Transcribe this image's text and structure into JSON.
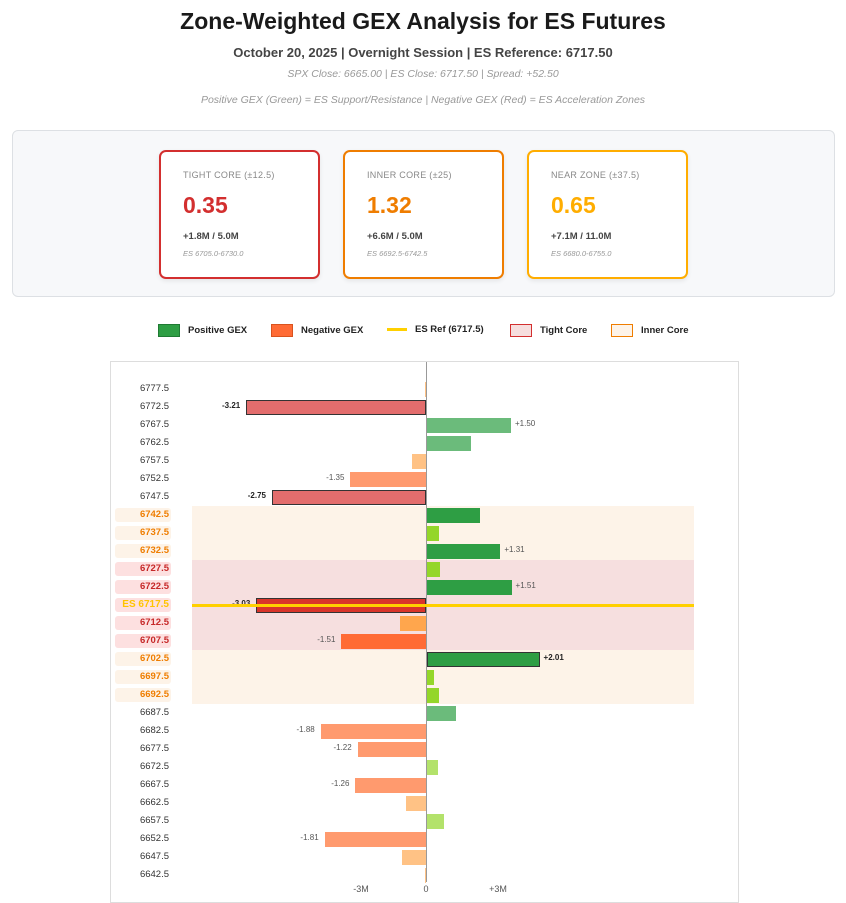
{
  "header": {
    "title": "Zone-Weighted GEX Analysis for ES Futures",
    "subtitle": "October 20, 2025 | Overnight Session | ES Reference: 6717.50",
    "closes": "SPX Close: 6665.00 | ES Close: 6717.50 | Spread: +52.50",
    "note": "Positive GEX (Green) = ES Support/Resistance | Negative GEX (Red) = ES Acceleration Zones"
  },
  "cards": [
    {
      "label": "TIGHT CORE (±12.5)",
      "value": "0.35",
      "ratio": "+1.8M / 5.0M",
      "range": "ES 6705.0-6730.0",
      "color": "#d32f2f"
    },
    {
      "label": "INNER CORE (±25)",
      "value": "1.32",
      "ratio": "+6.6M / 5.0M",
      "range": "ES 6692.5-6742.5",
      "color": "#ef7d00"
    },
    {
      "label": "NEAR ZONE (±37.5)",
      "value": "0.65",
      "ratio": "+7.1M / 11.0M",
      "range": "ES 6680.0-6755.0",
      "color": "#ffad00"
    }
  ],
  "legend": [
    {
      "label": "Positive GEX",
      "fill": "#2e9e44",
      "border": "#1f7a33",
      "line": false
    },
    {
      "label": "Negative GEX",
      "fill": "#ff6b35",
      "border": "#d9531e",
      "line": false
    },
    {
      "label": "ES Ref (6717.5)",
      "fill": "#ffd000",
      "border": "#ffd000",
      "line": true
    },
    {
      "label": "Tight Core",
      "fill": "#f6dede",
      "border": "#d32f2f",
      "line": false
    },
    {
      "label": "Inner Core",
      "fill": "#fdf3e8",
      "border": "#ef7d00",
      "line": false
    }
  ],
  "chart_data": {
    "type": "bar",
    "orientation": "horizontal",
    "es_ref": 6717.5,
    "es_ref_label": "ES 6717.5",
    "x_ticks": [
      "-3M",
      "0",
      "+3M"
    ],
    "rows": [
      {
        "strike": "6777.5",
        "value": -0.02,
        "color": "#ffc285",
        "label": "",
        "zone": ""
      },
      {
        "strike": "6772.5",
        "value": -3.21,
        "color": "#e36d6d",
        "label": "-3.21",
        "zone": "",
        "bold": true
      },
      {
        "strike": "6767.5",
        "value": 1.5,
        "color": "#6bbb7b",
        "label": "+1.50",
        "zone": ""
      },
      {
        "strike": "6762.5",
        "value": 0.78,
        "color": "#6bbb7b",
        "label": "",
        "zone": ""
      },
      {
        "strike": "6757.5",
        "value": -0.25,
        "color": "#ffc285",
        "label": "",
        "zone": ""
      },
      {
        "strike": "6752.5",
        "value": -1.35,
        "color": "#ff9a6e",
        "label": "-1.35",
        "zone": ""
      },
      {
        "strike": "6747.5",
        "value": -2.75,
        "color": "#e36d6d",
        "label": "-2.75",
        "zone": "",
        "bold": true
      },
      {
        "strike": "6742.5",
        "value": 0.95,
        "color": "#2e9e44",
        "label": "",
        "zone": "inner"
      },
      {
        "strike": "6737.5",
        "value": 0.21,
        "color": "#94d62a",
        "label": "",
        "zone": "inner"
      },
      {
        "strike": "6732.5",
        "value": 1.31,
        "color": "#2e9e44",
        "label": "+1.31",
        "zone": "inner"
      },
      {
        "strike": "6727.5",
        "value": 0.23,
        "color": "#94d62a",
        "label": "",
        "zone": "tight"
      },
      {
        "strike": "6722.5",
        "value": 1.51,
        "color": "#2e9e44",
        "label": "+1.51",
        "zone": "tight"
      },
      {
        "strike": "6717.5",
        "value": -3.03,
        "color": "#d9352b",
        "label": "-3.03",
        "zone": "tight",
        "bold": true,
        "es": true
      },
      {
        "strike": "6712.5",
        "value": -0.47,
        "color": "#ffa64d",
        "label": "",
        "zone": "tight"
      },
      {
        "strike": "6707.5",
        "value": -1.51,
        "color": "#ff6b35",
        "label": "-1.51",
        "zone": "tight"
      },
      {
        "strike": "6702.5",
        "value": 2.01,
        "color": "#2e9e44",
        "label": "+2.01",
        "zone": "inner",
        "bold": true
      },
      {
        "strike": "6697.5",
        "value": 0.12,
        "color": "#94d62a",
        "label": "",
        "zone": "inner"
      },
      {
        "strike": "6692.5",
        "value": 0.21,
        "color": "#94d62a",
        "label": "",
        "zone": "inner"
      },
      {
        "strike": "6687.5",
        "value": 0.52,
        "color": "#6bbb7b",
        "label": "",
        "zone": ""
      },
      {
        "strike": "6682.5",
        "value": -1.88,
        "color": "#ff9a6e",
        "label": "-1.88",
        "zone": ""
      },
      {
        "strike": "6677.5",
        "value": -1.22,
        "color": "#ff9a6e",
        "label": "-1.22",
        "zone": ""
      },
      {
        "strike": "6672.5",
        "value": 0.19,
        "color": "#b3e26b",
        "label": "",
        "zone": ""
      },
      {
        "strike": "6667.5",
        "value": -1.26,
        "color": "#ff9a6e",
        "label": "-1.26",
        "zone": ""
      },
      {
        "strike": "6662.5",
        "value": -0.36,
        "color": "#ffc285",
        "label": "",
        "zone": ""
      },
      {
        "strike": "6657.5",
        "value": 0.3,
        "color": "#b3e26b",
        "label": "",
        "zone": ""
      },
      {
        "strike": "6652.5",
        "value": -1.81,
        "color": "#ff9a6e",
        "label": "-1.81",
        "zone": ""
      },
      {
        "strike": "6647.5",
        "value": -0.43,
        "color": "#ffc285",
        "label": "",
        "zone": ""
      },
      {
        "strike": "6642.5",
        "value": -0.02,
        "color": "#ffc285",
        "label": "",
        "zone": ""
      }
    ]
  }
}
